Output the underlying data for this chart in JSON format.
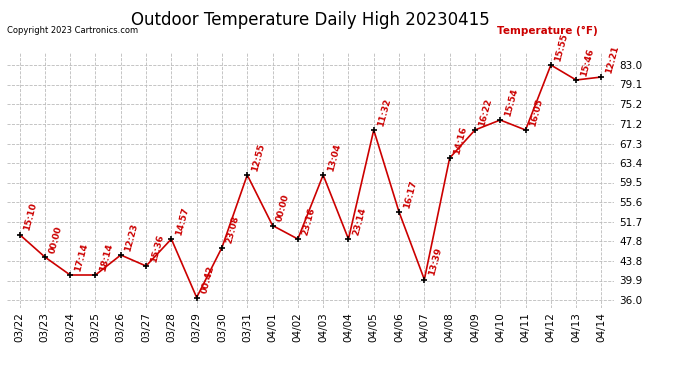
{
  "title": "Outdoor Temperature Daily High 20230415",
  "copyright": "Copyright 2023 Cartronics.com",
  "legend_label": "Temperature (°F)",
  "dates": [
    "03/22",
    "03/23",
    "03/24",
    "03/25",
    "03/26",
    "03/27",
    "03/28",
    "03/29",
    "03/30",
    "03/31",
    "04/01",
    "04/02",
    "04/03",
    "04/04",
    "04/05",
    "04/06",
    "04/07",
    "04/08",
    "04/09",
    "04/10",
    "04/11",
    "04/12",
    "04/13",
    "04/14"
  ],
  "temps": [
    49.1,
    44.6,
    41.0,
    41.0,
    45.0,
    42.8,
    48.2,
    36.5,
    46.5,
    61.0,
    50.9,
    48.2,
    61.0,
    48.2,
    70.0,
    53.6,
    40.1,
    64.4,
    70.0,
    72.0,
    70.0,
    83.0,
    80.0,
    80.6
  ],
  "times": [
    "15:10",
    "00:00",
    "17:14",
    "18:14",
    "12:23",
    "15:36",
    "14:57",
    "00:42",
    "23:08",
    "12:55",
    "00:00",
    "23:16",
    "13:04",
    "23:14",
    "11:32",
    "16:17",
    "13:39",
    "14:16",
    "16:22",
    "15:54",
    "16:05",
    "15:55",
    "15:46",
    "12:21"
  ],
  "yticks": [
    36.0,
    39.9,
    43.8,
    47.8,
    51.7,
    55.6,
    59.5,
    63.4,
    67.3,
    71.2,
    75.2,
    79.1,
    83.0
  ],
  "ytick_labels": [
    "36.0",
    "39.9",
    "43.8",
    "47.8",
    "51.7",
    "55.6",
    "59.5",
    "63.4",
    "67.3",
    "71.2",
    "75.2",
    "79.1",
    "83.0"
  ],
  "line_color": "#cc0000",
  "marker_color": "#000000",
  "label_color": "#cc0000",
  "bg_color": "#ffffff",
  "grid_color": "#bbbbbb",
  "title_fontsize": 12,
  "label_fontsize": 6.5,
  "tick_fontsize": 7.5,
  "ylim": [
    34.5,
    85.5
  ]
}
